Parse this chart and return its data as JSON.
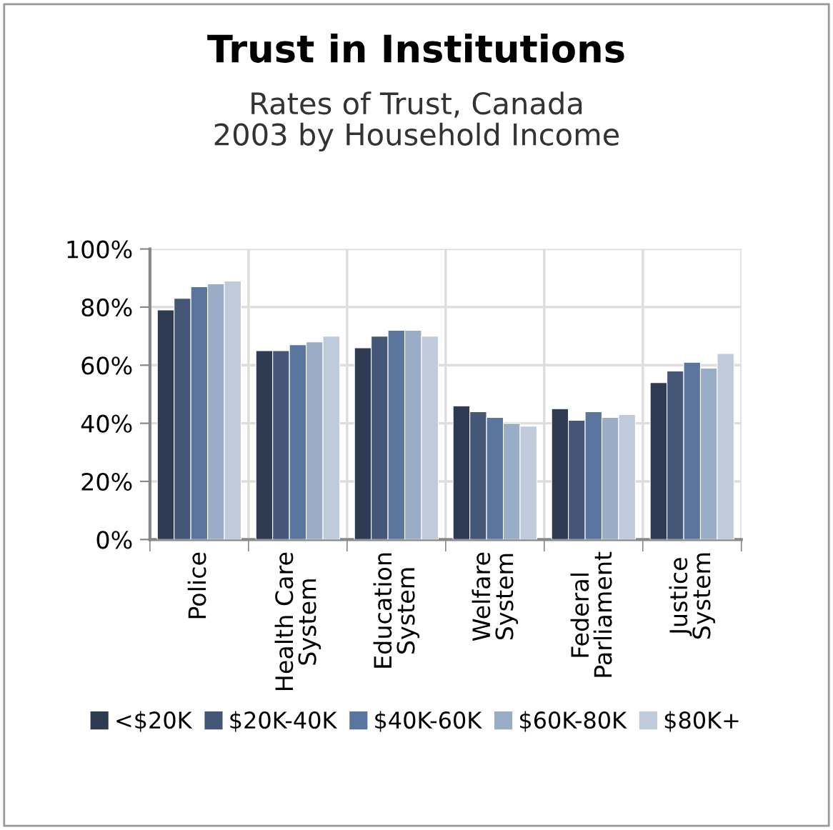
{
  "chart_data": {
    "type": "bar",
    "title": "Trust in Institutions",
    "subtitle": "Rates of Trust, Canada\n2003 by Household Income",
    "categories": [
      "Police",
      "Health Care\nSystem",
      "Education\nSystem",
      "Welfare\nSystem",
      "Federal\nParliament",
      "Justice\nSystem"
    ],
    "series": [
      {
        "name": "<$20K",
        "color": "#2e3b52",
        "values": [
          79,
          65,
          66,
          46,
          45,
          54
        ]
      },
      {
        "name": "$20K-40K",
        "color": "#445776",
        "values": [
          83,
          65,
          70,
          44,
          41,
          58
        ]
      },
      {
        "name": "$40K-60K",
        "color": "#5b769e",
        "values": [
          87,
          67,
          72,
          42,
          44,
          61
        ]
      },
      {
        "name": "$60K-80K",
        "color": "#9aadc7",
        "values": [
          88,
          68,
          72,
          40,
          42,
          59
        ]
      },
      {
        "name": "$80K+",
        "color": "#bfcadb",
        "values": [
          89,
          70,
          70,
          39,
          43,
          64
        ]
      }
    ],
    "ylim": [
      0,
      100
    ],
    "yticks": [
      {
        "value": 0,
        "label": "0%"
      },
      {
        "value": 20,
        "label": "20%"
      },
      {
        "value": 40,
        "label": "40%"
      },
      {
        "value": 60,
        "label": "60%"
      },
      {
        "value": 80,
        "label": "80%"
      },
      {
        "value": 100,
        "label": "100%"
      }
    ],
    "grid": true,
    "legend": "bottom"
  }
}
